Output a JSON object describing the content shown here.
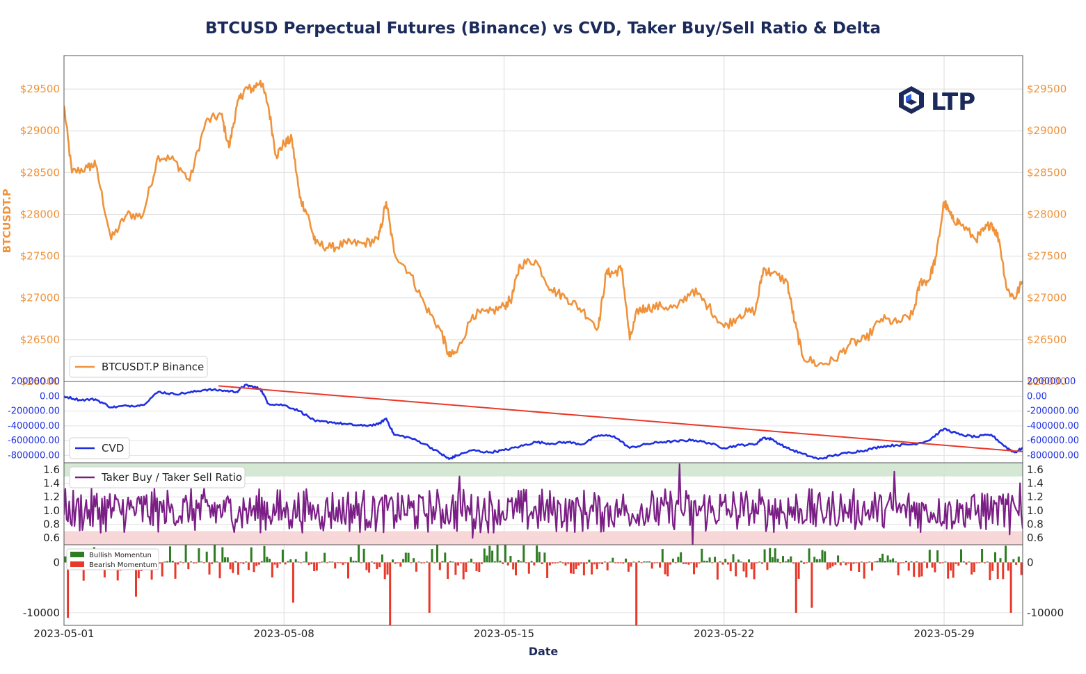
{
  "title": "BTCUSD Perpectual Futures (Binance) vs CVD, Taker Buy/Sell Ratio & Delta",
  "logo": {
    "text": "LTP",
    "icon": "ltp-logo-icon",
    "color": "#1b2a5a"
  },
  "colors": {
    "price": "#f0923a",
    "cvd": "#1f2fe0",
    "trend": "#e8382a",
    "ratio": "#7b1f86",
    "bull": "#2e7d22",
    "bear": "#e8382a",
    "overbought_band": "#cfe6cf",
    "oversold_band": "#f6d3d3"
  },
  "chart_data": [
    {
      "type": "line",
      "panel": "price",
      "ylabel": "BTCUSDT.P",
      "xlabel": "Date",
      "xlim": [
        "2023-05-01",
        "2023-05-31T12:00"
      ],
      "ylim": [
        26000,
        29900
      ],
      "yticks": [
        26000,
        26500,
        27000,
        27500,
        28000,
        28500,
        29000,
        29500
      ],
      "ytick_labels": [
        "$26000",
        "$26500",
        "$27000",
        "$27500",
        "$28000",
        "$28500",
        "$29000",
        "$29500"
      ],
      "xticks": [
        "2023-05-01",
        "2023-05-08",
        "2023-05-15",
        "2023-05-22",
        "2023-05-29"
      ],
      "legend": "BTCUSDT.P Binance",
      "legend_position": "lower-left",
      "grid": true,
      "points": [
        [
          "2023-05-01",
          29300
        ],
        [
          "2023-05-01T06:00",
          28500
        ],
        [
          "2023-05-01T18:00",
          28560
        ],
        [
          "2023-05-02",
          28600
        ],
        [
          "2023-05-02T12:00",
          27700
        ],
        [
          "2023-05-03",
          28000
        ],
        [
          "2023-05-03T12:00",
          27980
        ],
        [
          "2023-05-04",
          28700
        ],
        [
          "2023-05-04T12:00",
          28650
        ],
        [
          "2023-05-05",
          28400
        ],
        [
          "2023-05-05T12:00",
          29100
        ],
        [
          "2023-05-06",
          29200
        ],
        [
          "2023-05-06T06:00",
          28800
        ],
        [
          "2023-05-06T12:00",
          29300
        ],
        [
          "2023-05-06T18:00",
          29500
        ],
        [
          "2023-05-07",
          29500
        ],
        [
          "2023-05-07T06:00",
          29600
        ],
        [
          "2023-05-07T12:00",
          29300
        ],
        [
          "2023-05-07T18:00",
          28700
        ],
        [
          "2023-05-08",
          28850
        ],
        [
          "2023-05-08T06:00",
          28900
        ],
        [
          "2023-05-08T12:00",
          28200
        ],
        [
          "2023-05-08T18:00",
          28000
        ],
        [
          "2023-05-09",
          27650
        ],
        [
          "2023-05-09T12:00",
          27600
        ],
        [
          "2023-05-10",
          27650
        ],
        [
          "2023-05-10T12:00",
          27650
        ],
        [
          "2023-05-11",
          27700
        ],
        [
          "2023-05-11T06:00",
          28150
        ],
        [
          "2023-05-11T12:00",
          27550
        ],
        [
          "2023-05-12",
          27300
        ],
        [
          "2023-05-12T12:00",
          26900
        ],
        [
          "2023-05-13",
          26600
        ],
        [
          "2023-05-13T06:00",
          26300
        ],
        [
          "2023-05-13T12:00",
          26350
        ],
        [
          "2023-05-14",
          26800
        ],
        [
          "2023-05-14T12:00",
          26820
        ],
        [
          "2023-05-15",
          26900
        ],
        [
          "2023-05-15T06:00",
          27000
        ],
        [
          "2023-05-15T12:00",
          27400
        ],
        [
          "2023-05-16",
          27450
        ],
        [
          "2023-05-16T12:00",
          27100
        ],
        [
          "2023-05-17",
          27000
        ],
        [
          "2023-05-17T12:00",
          26850
        ],
        [
          "2023-05-18",
          26650
        ],
        [
          "2023-05-18T06:00",
          27300
        ],
        [
          "2023-05-18T12:00",
          27300
        ],
        [
          "2023-05-18T18:00",
          27350
        ],
        [
          "2023-05-19",
          26500
        ],
        [
          "2023-05-19T06:00",
          26850
        ],
        [
          "2023-05-19T12:00",
          26880
        ],
        [
          "2023-05-20",
          26900
        ],
        [
          "2023-05-20T12:00",
          26880
        ],
        [
          "2023-05-21",
          27100
        ],
        [
          "2023-05-21T12:00",
          26900
        ],
        [
          "2023-05-22",
          26650
        ],
        [
          "2023-05-22T12:00",
          26800
        ],
        [
          "2023-05-23",
          26850
        ],
        [
          "2023-05-23T06:00",
          27350
        ],
        [
          "2023-05-23T12:00",
          27300
        ],
        [
          "2023-05-24",
          27200
        ],
        [
          "2023-05-24T06:00",
          26700
        ],
        [
          "2023-05-24T12:00",
          26300
        ],
        [
          "2023-05-25",
          26200
        ],
        [
          "2023-05-25T12:00",
          26250
        ],
        [
          "2023-05-26",
          26450
        ],
        [
          "2023-05-26T12:00",
          26500
        ],
        [
          "2023-05-27",
          26750
        ],
        [
          "2023-05-27T12:00",
          26700
        ],
        [
          "2023-05-28",
          26800
        ],
        [
          "2023-05-28T06:00",
          27200
        ],
        [
          "2023-05-28T12:00",
          27200
        ],
        [
          "2023-05-28T18:00",
          27500
        ],
        [
          "2023-05-29",
          28150
        ],
        [
          "2023-05-29T06:00",
          27950
        ],
        [
          "2023-05-29T12:00",
          27900
        ],
        [
          "2023-05-30",
          27700
        ],
        [
          "2023-05-30T06:00",
          27800
        ],
        [
          "2023-05-30T12:00",
          27900
        ],
        [
          "2023-05-30T18:00",
          27700
        ],
        [
          "2023-05-31",
          27100
        ],
        [
          "2023-05-31T06:00",
          27000
        ],
        [
          "2023-05-31T12:00",
          27200
        ]
      ]
    },
    {
      "type": "line",
      "panel": "cvd",
      "ylim": [
        -900000,
        200000
      ],
      "yticks": [
        200000,
        0,
        -200000,
        -400000,
        -600000,
        -800000
      ],
      "ytick_labels": [
        "200000.00",
        "0.00",
        "-200000.00",
        "-400000.00",
        "-600000.00",
        "-800000.00"
      ],
      "legend": "CVD",
      "legend_position": "lower-left",
      "trendline": {
        "from": [
          "2023-05-05T22:00",
          140000
        ],
        "to": [
          "2023-05-31T12:00",
          -750000
        ]
      },
      "points": [
        [
          "2023-05-01",
          0
        ],
        [
          "2023-05-01T12:00",
          -50000
        ],
        [
          "2023-05-02",
          -40000
        ],
        [
          "2023-05-02T12:00",
          -150000
        ],
        [
          "2023-05-03",
          -130000
        ],
        [
          "2023-05-03T12:00",
          -120000
        ],
        [
          "2023-05-04",
          60000
        ],
        [
          "2023-05-04T12:00",
          30000
        ],
        [
          "2023-05-05",
          50000
        ],
        [
          "2023-05-05T12:00",
          90000
        ],
        [
          "2023-05-06",
          80000
        ],
        [
          "2023-05-06T12:00",
          60000
        ],
        [
          "2023-05-06T18:00",
          150000
        ],
        [
          "2023-05-07",
          130000
        ],
        [
          "2023-05-07T06:00",
          100000
        ],
        [
          "2023-05-07T12:00",
          -100000
        ],
        [
          "2023-05-08",
          -120000
        ],
        [
          "2023-05-08T12:00",
          -200000
        ],
        [
          "2023-05-09",
          -340000
        ],
        [
          "2023-05-09T12:00",
          -350000
        ],
        [
          "2023-05-10",
          -380000
        ],
        [
          "2023-05-10T12:00",
          -400000
        ],
        [
          "2023-05-11",
          -380000
        ],
        [
          "2023-05-11T06:00",
          -300000
        ],
        [
          "2023-05-11T12:00",
          -520000
        ],
        [
          "2023-05-12",
          -560000
        ],
        [
          "2023-05-12T12:00",
          -650000
        ],
        [
          "2023-05-13",
          -780000
        ],
        [
          "2023-05-13T06:00",
          -850000
        ],
        [
          "2023-05-13T12:00",
          -800000
        ],
        [
          "2023-05-14",
          -730000
        ],
        [
          "2023-05-14T12:00",
          -760000
        ],
        [
          "2023-05-15",
          -730000
        ],
        [
          "2023-05-15T12:00",
          -680000
        ],
        [
          "2023-05-16",
          -620000
        ],
        [
          "2023-05-16T12:00",
          -640000
        ],
        [
          "2023-05-17",
          -620000
        ],
        [
          "2023-05-17T12:00",
          -650000
        ],
        [
          "2023-05-18",
          -530000
        ],
        [
          "2023-05-18T12:00",
          -540000
        ],
        [
          "2023-05-19",
          -700000
        ],
        [
          "2023-05-19T12:00",
          -650000
        ],
        [
          "2023-05-20",
          -620000
        ],
        [
          "2023-05-20T12:00",
          -610000
        ],
        [
          "2023-05-21",
          -590000
        ],
        [
          "2023-05-21T12:00",
          -630000
        ],
        [
          "2023-05-22",
          -700000
        ],
        [
          "2023-05-22T12:00",
          -660000
        ],
        [
          "2023-05-23",
          -650000
        ],
        [
          "2023-05-23T06:00",
          -560000
        ],
        [
          "2023-05-23T12:00",
          -580000
        ],
        [
          "2023-05-24",
          -700000
        ],
        [
          "2023-05-24T12:00",
          -780000
        ],
        [
          "2023-05-25",
          -850000
        ],
        [
          "2023-05-25T12:00",
          -800000
        ],
        [
          "2023-05-26",
          -760000
        ],
        [
          "2023-05-26T12:00",
          -730000
        ],
        [
          "2023-05-27",
          -680000
        ],
        [
          "2023-05-27T12:00",
          -660000
        ],
        [
          "2023-05-28",
          -650000
        ],
        [
          "2023-05-28T12:00",
          -600000
        ],
        [
          "2023-05-29",
          -440000
        ],
        [
          "2023-05-29T12:00",
          -520000
        ],
        [
          "2023-05-30",
          -550000
        ],
        [
          "2023-05-30T12:00",
          -520000
        ],
        [
          "2023-05-31",
          -700000
        ],
        [
          "2023-05-31T06:00",
          -760000
        ],
        [
          "2023-05-31T12:00",
          -700000
        ]
      ]
    },
    {
      "type": "line",
      "panel": "ratio",
      "ylim": [
        0.5,
        1.7
      ],
      "yticks": [
        0.6,
        0.8,
        1.0,
        1.2,
        1.4,
        1.6
      ],
      "ytick_labels": [
        "0.6",
        "0.8",
        "1.0",
        "1.2",
        "1.4",
        "1.6"
      ],
      "legend": "Taker Buy / Taker Sell Ratio",
      "legend_position": "upper-left",
      "bands": [
        {
          "from": 1.5,
          "to": 1.7,
          "kind": "overbought"
        },
        {
          "from": 0.5,
          "to": 0.7,
          "kind": "oversold"
        }
      ],
      "samples_per_day": 24,
      "mean": 1.0,
      "typical_range": [
        0.75,
        1.3
      ],
      "extremes": [
        [
          "2023-05-13T14:00",
          1.5
        ],
        [
          "2023-05-14",
          0.6
        ],
        [
          "2023-05-20T14:00",
          1.68
        ],
        [
          "2023-05-21",
          0.5
        ],
        [
          "2023-05-27T10:00",
          1.57
        ],
        [
          "2023-05-31T02:00",
          0.65
        ],
        [
          "2023-05-31T10:00",
          1.4
        ]
      ]
    },
    {
      "type": "bar",
      "panel": "delta",
      "ylim": [
        -12500,
        3500
      ],
      "yticks": [
        0,
        -10000
      ],
      "ytick_labels": [
        "0",
        "-10000"
      ],
      "legend": [
        "Bullish Momentun",
        "Bearish Momentum"
      ],
      "legend_position": "upper-left",
      "bars_per_day": 12,
      "notable_bars": [
        [
          "2023-05-01T02:00",
          -11000
        ],
        [
          "2023-05-03T06:00",
          -6800
        ],
        [
          "2023-05-08T06:00",
          -8000
        ],
        [
          "2023-05-10T12:00",
          2700
        ],
        [
          "2023-05-11T08:00",
          -12700
        ],
        [
          "2023-05-12T14:00",
          -10000
        ],
        [
          "2023-05-19T04:00",
          -14000
        ],
        [
          "2023-05-24T06:00",
          -10000
        ],
        [
          "2023-05-24T18:00",
          -9000
        ],
        [
          "2023-05-23T14:00",
          2800
        ],
        [
          "2023-05-29T12:00",
          2600
        ],
        [
          "2023-05-31T02:00",
          -10000
        ],
        [
          "2023-05-31T12:00",
          -4500
        ]
      ]
    }
  ]
}
